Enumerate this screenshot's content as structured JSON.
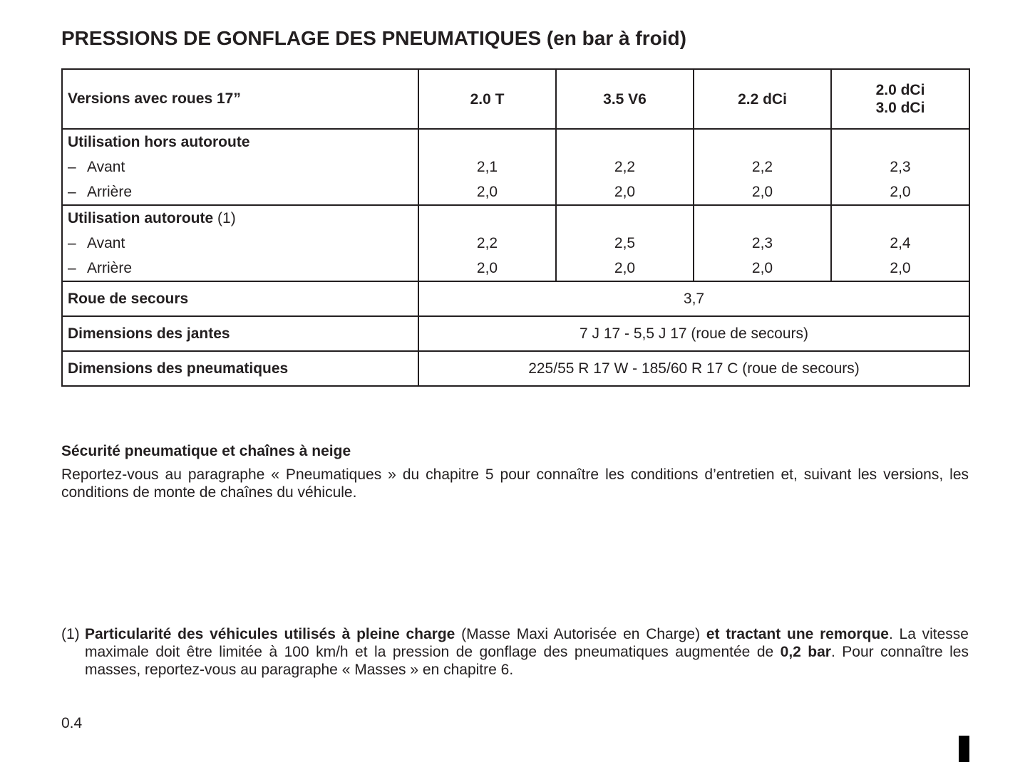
{
  "title": "PRESSIONS DE GONFLAGE DES PNEUMATIQUES (en bar à froid)",
  "table": {
    "header": {
      "label": "Versions avec roues 17”",
      "versions": [
        "2.0 T",
        "3.5 V6",
        "2.2 dCi",
        [
          "2.0 dCi",
          "3.0 dCi"
        ]
      ]
    },
    "groups": [
      {
        "label": "Utilisation hors autoroute",
        "rows": [
          {
            "bullet": "–",
            "label": "Avant",
            "values": [
              "2,1",
              "2,2",
              "2,2",
              "2,3"
            ]
          },
          {
            "bullet": "–",
            "label": "Arrière",
            "values": [
              "2,0",
              "2,0",
              "2,0",
              "2,0"
            ]
          }
        ]
      },
      {
        "label": "Utilisation autoroute",
        "note": "(1)",
        "rows": [
          {
            "bullet": "–",
            "label": "Avant",
            "values": [
              "2,2",
              "2,5",
              "2,3",
              "2,4"
            ]
          },
          {
            "bullet": "–",
            "label": "Arrière",
            "values": [
              "2,0",
              "2,0",
              "2,0",
              "2,0"
            ]
          }
        ]
      }
    ],
    "spans": [
      {
        "label": "Roue de secours",
        "value": "3,7"
      },
      {
        "label": "Dimensions des jantes",
        "value": "7 J 17 - 5,5 J 17 (roue de secours)"
      },
      {
        "label": "Dimensions des pneumatiques",
        "value": "225/55 R 17 W - 185/60 R 17 C (roue de secours)"
      }
    ]
  },
  "section": {
    "heading": "Sécurité pneumatique et chaînes à neige",
    "text": "Reportez-vous au paragraphe « Pneumatiques » du chapitre 5 pour connaître les conditions d’entretien et, suivant les versions, les conditions de monte de chaînes du véhicule."
  },
  "footnote": {
    "marker": "(1)",
    "runs": [
      {
        "text": "Particularité des véhicules utilisés à pleine charge",
        "bold": true
      },
      {
        "text": " (Masse Maxi Autorisée en Charge) ",
        "bold": false
      },
      {
        "text": "et tractant une remorque",
        "bold": true
      },
      {
        "text": ". La vitesse maximale doit être limitée à 100 km/h et la pression de gonflage des pneumatiques augmentée de ",
        "bold": false
      },
      {
        "text": "0,2 bar",
        "bold": true
      },
      {
        "text": ". Pour connaître les masses, reportez-vous au paragraphe « Masses » en chapitre 6.",
        "bold": false
      }
    ]
  },
  "page_number": "0.4"
}
